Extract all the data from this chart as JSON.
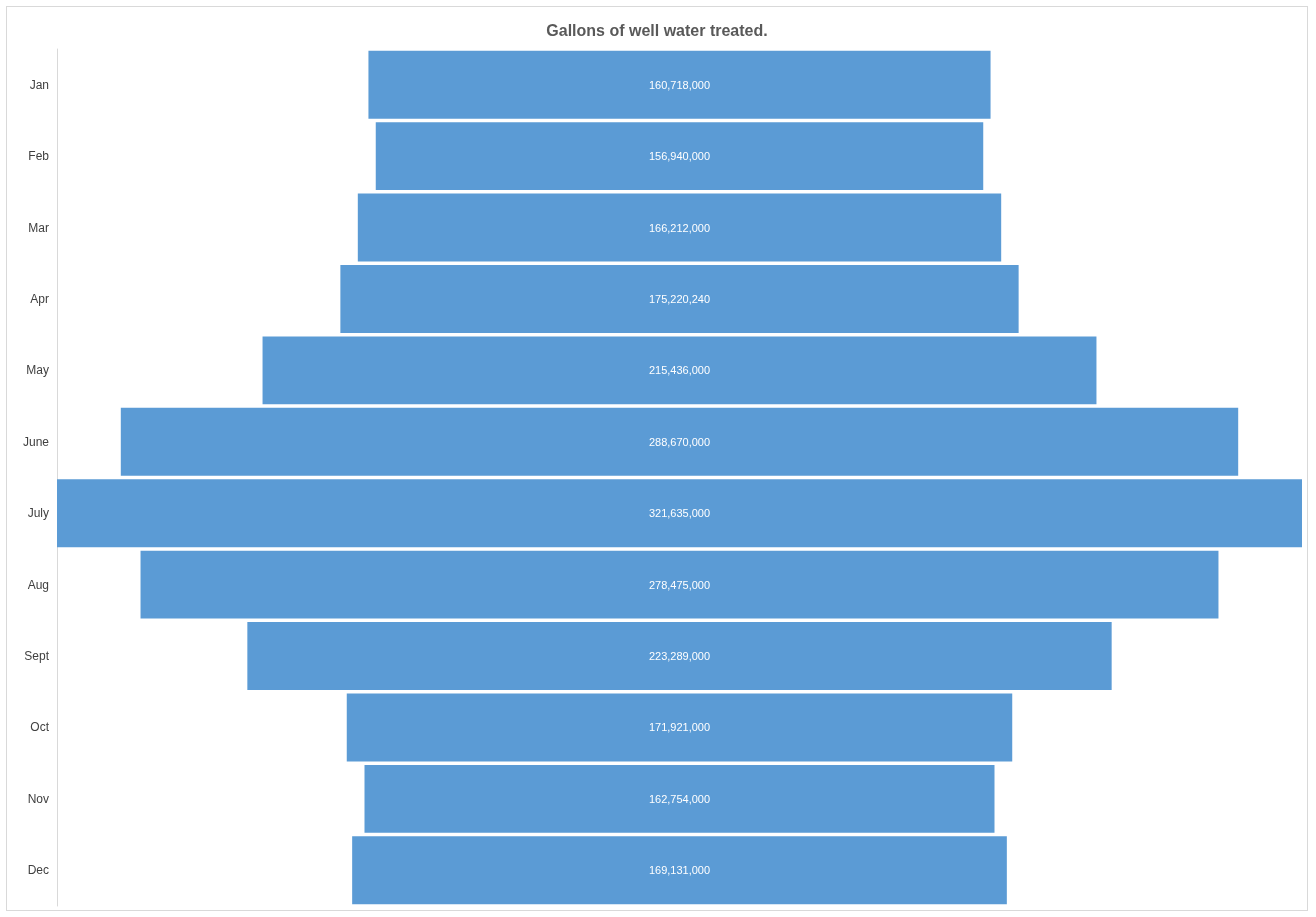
{
  "chart_data": {
    "type": "other",
    "title": "Gallons of well water treated.",
    "categories": [
      "Jan",
      "Feb",
      "Mar",
      "Apr",
      "May",
      "June",
      "July",
      "Aug",
      "Sept",
      "Oct",
      "Nov",
      "Dec"
    ],
    "values": [
      160718000,
      156940000,
      166212000,
      175220240,
      215436000,
      288670000,
      321635000,
      278475000,
      223289000,
      171921000,
      162754000,
      169131000
    ],
    "value_labels": [
      "160,718,000",
      "156,940,000",
      "166,212,000",
      "175,220,240",
      "215,436,000",
      "288,670,000",
      "321,635,000",
      "278,475,000",
      "223,289,000",
      "171,921,000",
      "162,754,000",
      "169,131,000"
    ],
    "color": "#5b9bd5"
  }
}
